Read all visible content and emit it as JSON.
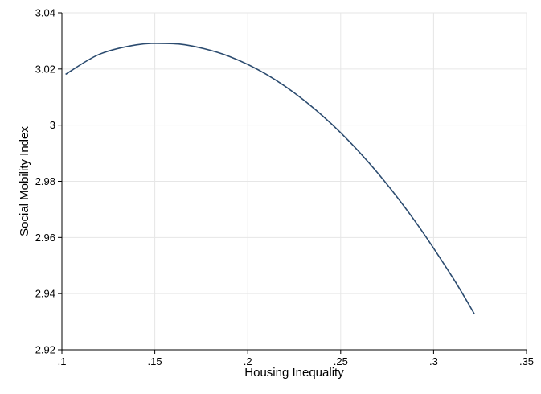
{
  "chart_data": {
    "type": "line",
    "title": "",
    "xlabel": "Housing Inequality",
    "ylabel": "Social Mobility Index",
    "xlim": [
      0.1,
      0.35
    ],
    "ylim": [
      2.92,
      3.04
    ],
    "x_ticks": [
      {
        "value": 0.1,
        "label": ".1"
      },
      {
        "value": 0.15,
        "label": ".15"
      },
      {
        "value": 0.2,
        "label": ".2"
      },
      {
        "value": 0.25,
        "label": ".25"
      },
      {
        "value": 0.3,
        "label": ".3"
      },
      {
        "value": 0.35,
        "label": ".35"
      }
    ],
    "y_ticks": [
      {
        "value": 2.92,
        "label": "2.92"
      },
      {
        "value": 2.94,
        "label": "2.94"
      },
      {
        "value": 2.96,
        "label": "2.96"
      },
      {
        "value": 2.98,
        "label": "2.98"
      },
      {
        "value": 3.0,
        "label": "3"
      },
      {
        "value": 3.02,
        "label": "3.02"
      },
      {
        "value": 3.04,
        "label": "3.04"
      }
    ],
    "grid": true,
    "legend": "none",
    "colors": {
      "line": "#2b4b6f",
      "grid": "#e6e6e6",
      "axis": "#000000"
    },
    "series": [
      {
        "x": [
          0.102,
          0.12,
          0.14,
          0.156,
          0.17,
          0.19,
          0.21,
          0.23,
          0.25,
          0.27,
          0.29,
          0.31,
          0.322
        ],
        "y": [
          3.0181,
          3.0252,
          3.0286,
          3.0291,
          3.0282,
          3.0245,
          3.0181,
          3.009,
          2.9973,
          2.9829,
          2.9658,
          2.946,
          2.9327
        ]
      }
    ]
  }
}
